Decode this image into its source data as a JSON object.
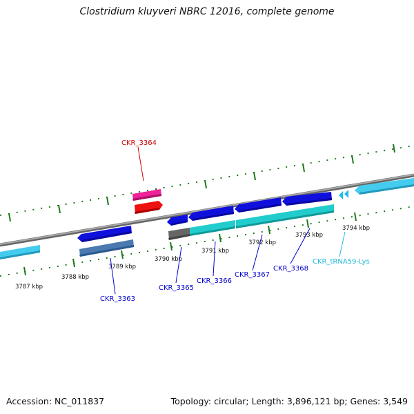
{
  "title": "Clostridium kluyveri NBRC 12016, complete genome",
  "footer": {
    "accession": "Accession: NC_011837",
    "summary": "Topology: circular; Length: 3,896,121 bp; Genes: 3,549"
  },
  "scale_labels": [
    "3787 kbp",
    "3788 kbp",
    "3789 kbp",
    "3790 kbp",
    "3791 kbp",
    "3792 kbp",
    "3793 kbp",
    "3794 kbp"
  ],
  "gene_labels": {
    "g3363": "CKR_3363",
    "g3364": "CKR_3364",
    "g3365": "CKR_3365",
    "g3366": "CKR_3366",
    "g3367": "CKR_3367",
    "g3368": "CKR_3368",
    "trna": "CKR_tRNA59-Lys"
  },
  "colors": {
    "backbone": "#888888",
    "tick": "#1a7a1a",
    "cds_blue": "#1010dd",
    "steelblue": "#4a7ab0",
    "cyan": "#22cccc",
    "light_blue": "#44ccee",
    "magenta": "#ee2299",
    "red": "#ee1111",
    "gray": "#666666",
    "label_blue": "#0000cc",
    "label_red": "#cc0000",
    "label_cyan": "#22bbdd"
  }
}
